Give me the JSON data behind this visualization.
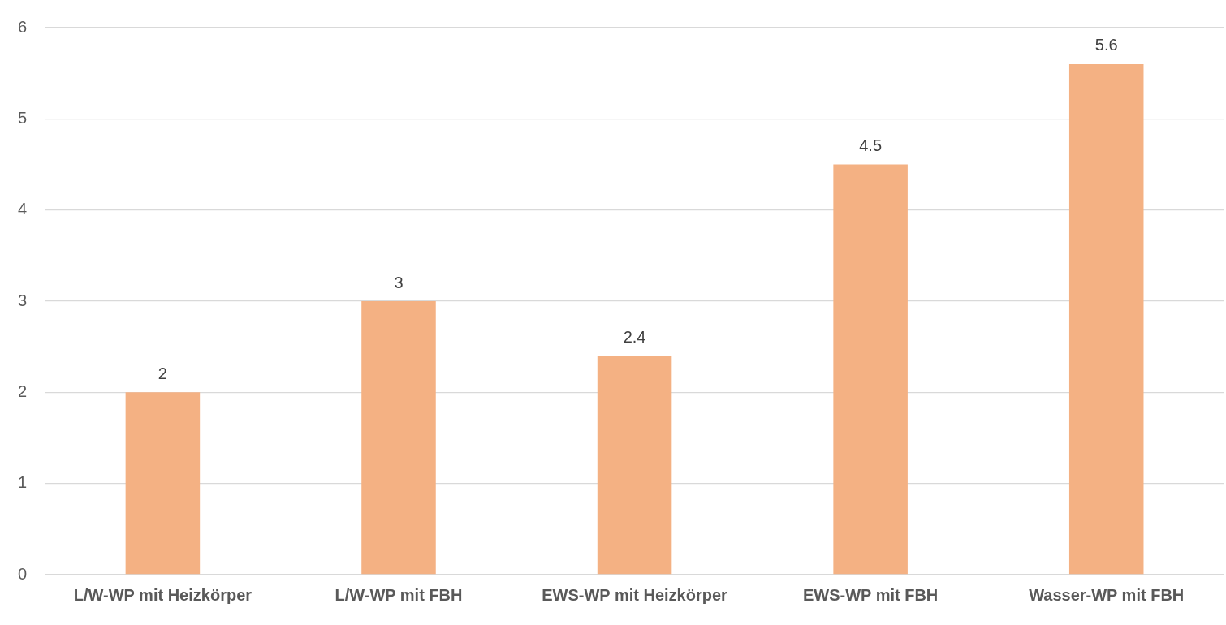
{
  "chart_data": {
    "type": "bar",
    "categories": [
      "L/W-WP mit Heizkörper",
      "L/W-WP mit FBH",
      "EWS-WP mit Heizkörper",
      "EWS-WP mit FBH",
      "Wasser-WP mit FBH"
    ],
    "values": [
      2,
      3,
      2.4,
      4.5,
      5.6
    ],
    "color": "#f4b183",
    "ylim": [
      0,
      6
    ],
    "yticks": [
      0,
      1,
      2,
      3,
      4,
      5,
      6
    ],
    "grid": "y",
    "data_labels": true,
    "legend": false
  }
}
